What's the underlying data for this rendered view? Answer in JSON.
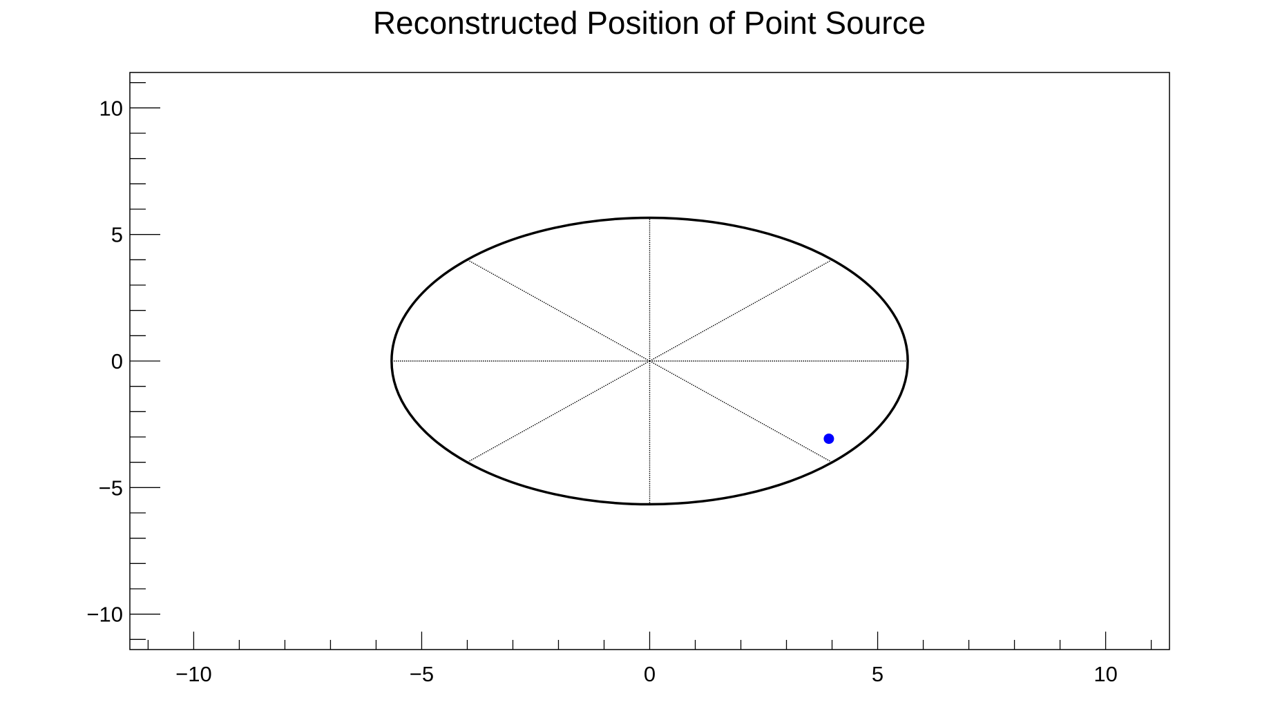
{
  "chart_data": {
    "type": "scatter",
    "title": "Reconstructed Position of Point Source",
    "xlabel": "",
    "ylabel": "",
    "xlim": [
      -11.4,
      11.4
    ],
    "ylim": [
      -11.4,
      11.4
    ],
    "x_ticks": [
      -10,
      -5,
      0,
      5,
      10
    ],
    "x_tick_labels": [
      "−10",
      "−5",
      "0",
      "5",
      "10"
    ],
    "y_ticks": [
      -10,
      -5,
      0,
      5,
      10
    ],
    "y_tick_labels": [
      "−10",
      "−5",
      "0",
      "5",
      "10"
    ],
    "x_minor_step": 1,
    "y_minor_step": 1,
    "grid": false,
    "detector_outline": {
      "shape": "circle",
      "center": [
        0,
        0
      ],
      "radius": 5.66,
      "spoke_angles_deg": [
        0,
        45,
        90,
        135,
        180,
        225,
        270,
        315
      ],
      "color": "#000000"
    },
    "series": [
      {
        "points": [
          {
            "x": 3.93,
            "y": -3.07
          }
        ],
        "color": "#0000ff"
      }
    ]
  }
}
